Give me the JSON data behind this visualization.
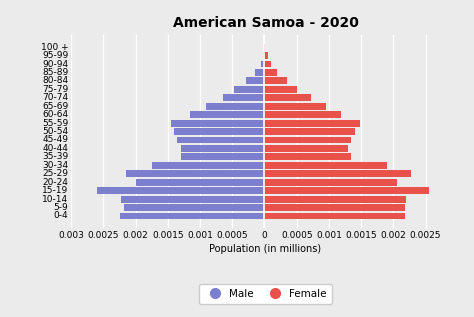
{
  "title": "American Samoa - 2020",
  "age_groups": [
    "0-4",
    "5-9",
    "10-14",
    "15-19",
    "20-24",
    "25-29",
    "30-34",
    "35-39",
    "40-44",
    "45-49",
    "50-54",
    "55-59",
    "60-64",
    "65-69",
    "70-74",
    "75-79",
    "80-84",
    "85-89",
    "90-94",
    "95-99",
    "100 +"
  ],
  "male": [
    0.00224,
    0.00218,
    0.00223,
    0.0026,
    0.002,
    0.00215,
    0.00175,
    0.0013,
    0.0013,
    0.00135,
    0.0014,
    0.00145,
    0.00115,
    0.0009,
    0.00065,
    0.00048,
    0.00028,
    0.00015,
    5e-05,
    2e-05,
    1e-05
  ],
  "female": [
    0.00218,
    0.00218,
    0.0022,
    0.00255,
    0.00205,
    0.00228,
    0.0019,
    0.00135,
    0.0013,
    0.00135,
    0.0014,
    0.00148,
    0.00118,
    0.00095,
    0.00072,
    0.0005,
    0.00035,
    0.0002,
    0.0001,
    5e-05,
    1e-05
  ],
  "male_color": "#7b7fcd",
  "female_color": "#e8524a",
  "background_color": "#ebebeb",
  "xlabel": "Population (in millions)",
  "xlim": 0.003,
  "title_fontsize": 10,
  "label_fontsize": 7,
  "tick_fontsize": 6.5
}
